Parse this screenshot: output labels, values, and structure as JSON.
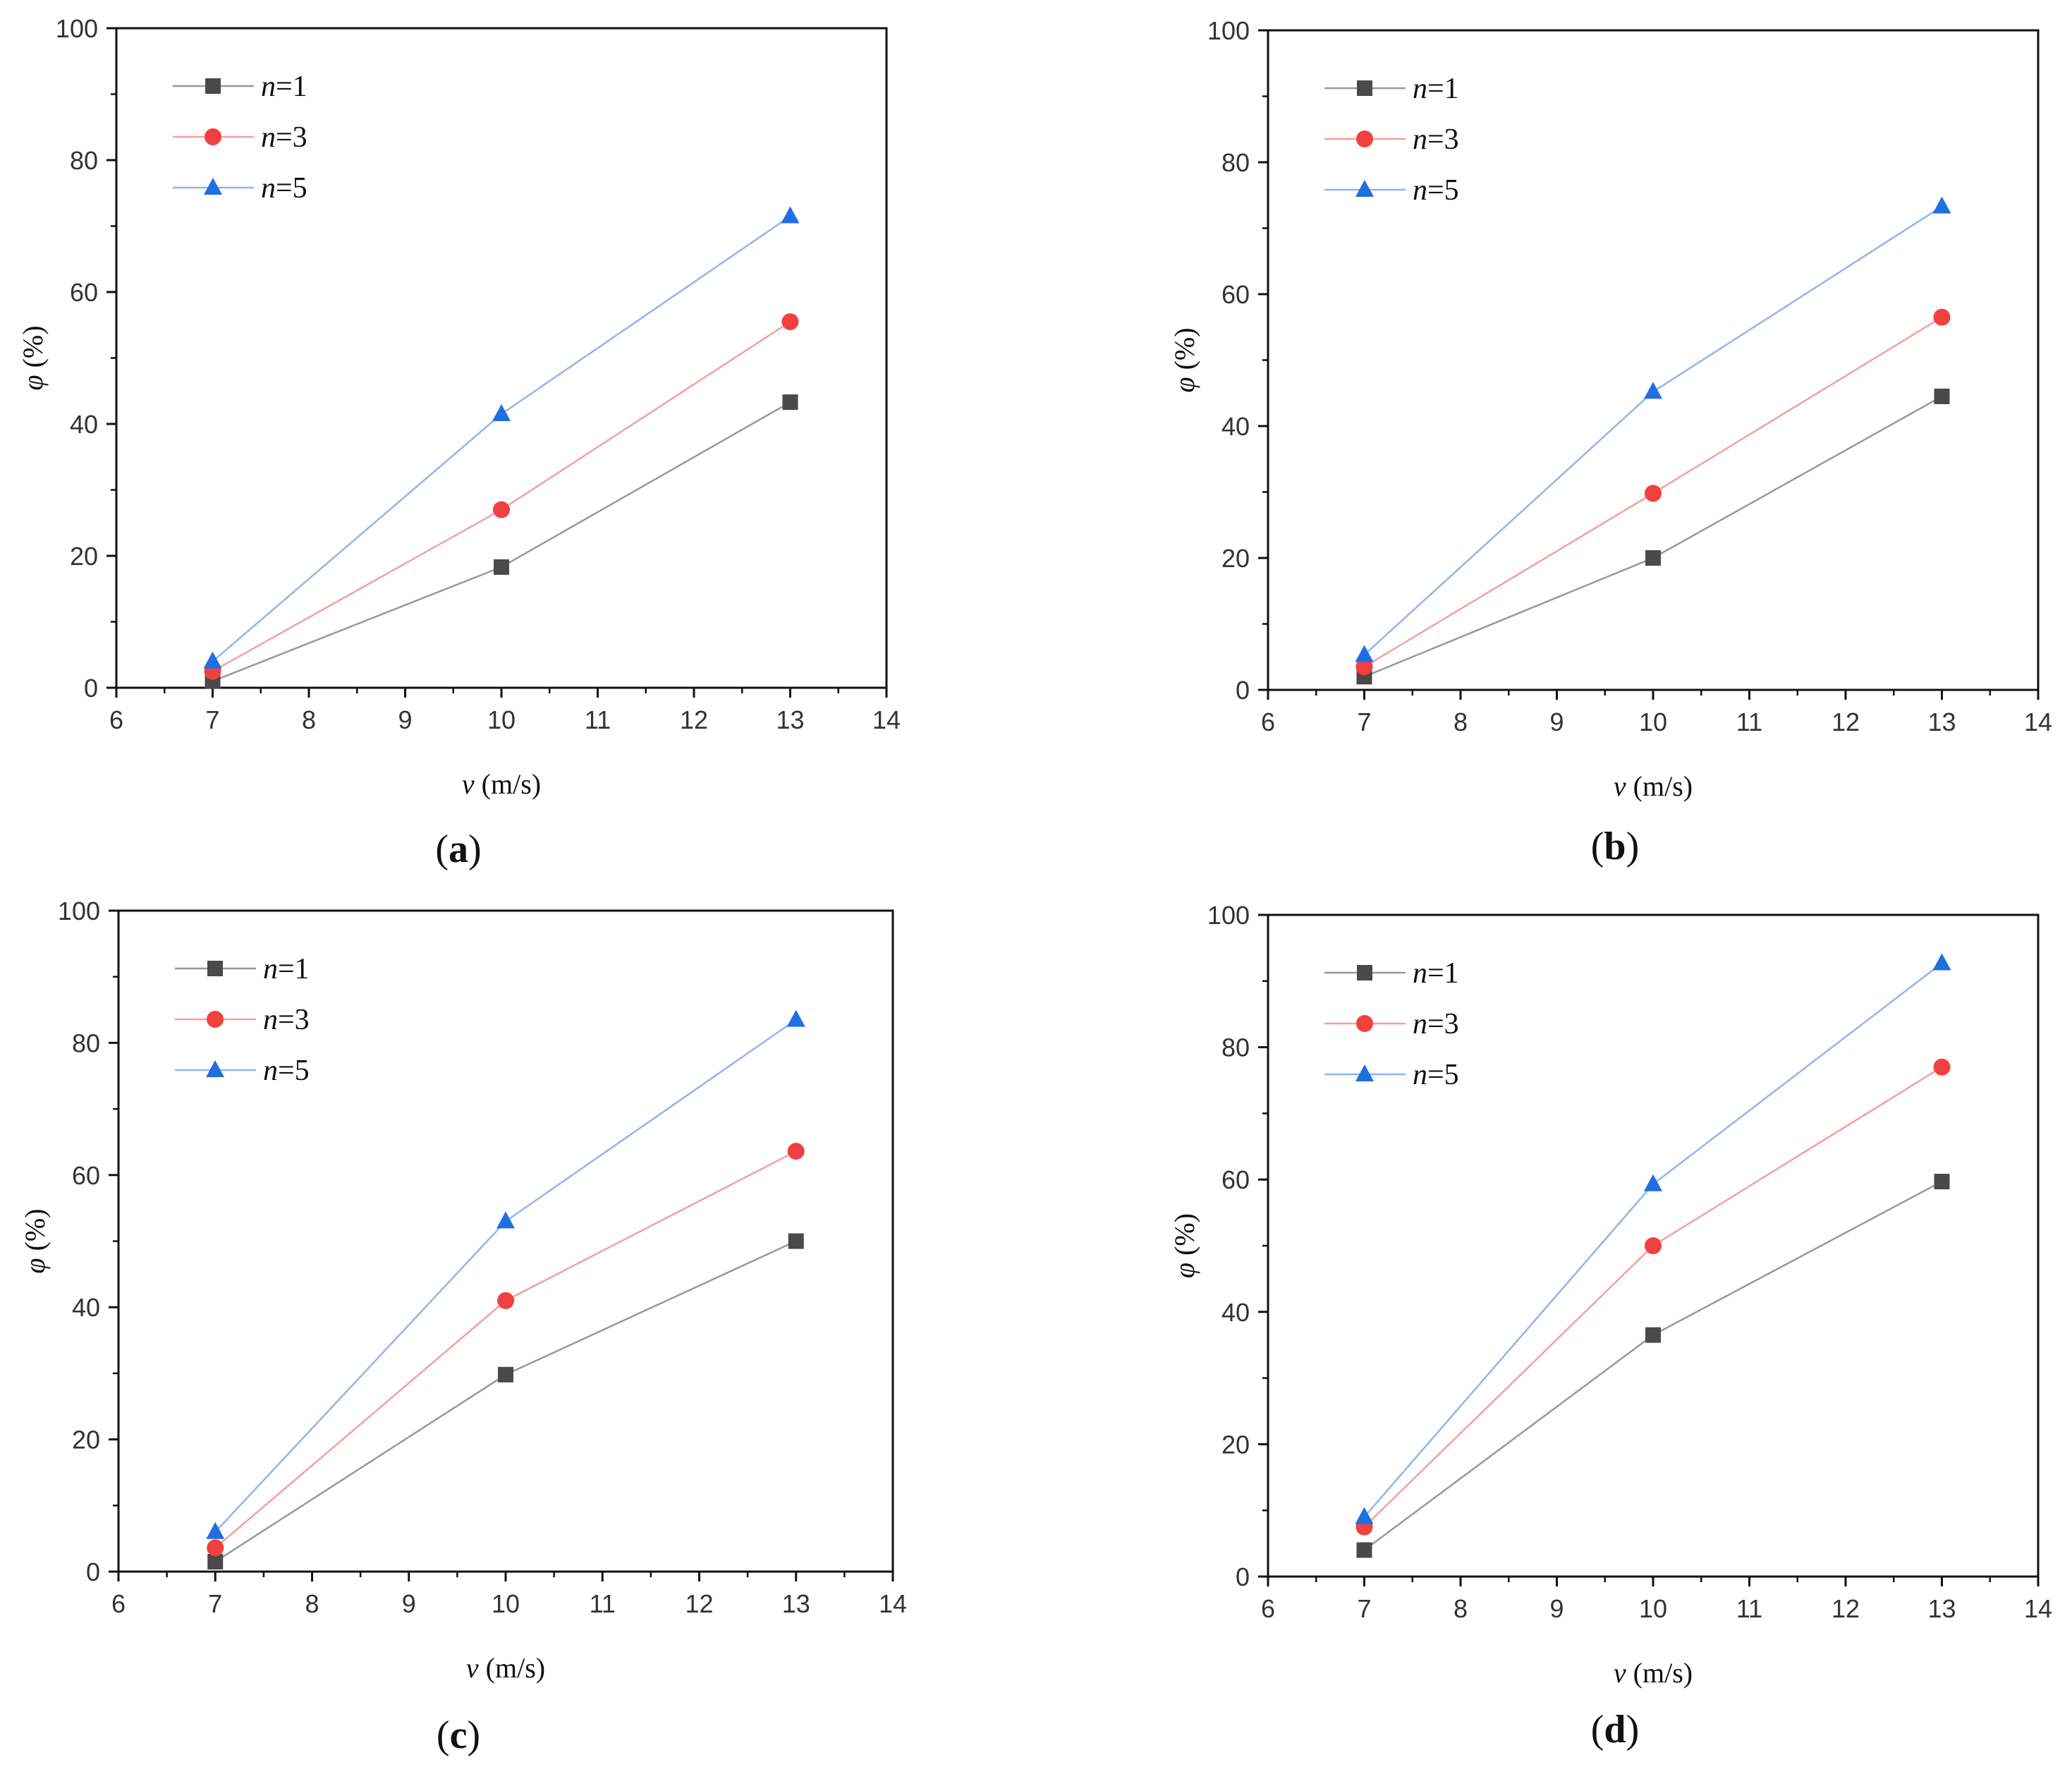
{
  "figure": {
    "series_colors": {
      "n=1": "#4a4a4a",
      "n=3": "#f0403f",
      "n=5": "#1f6fe0"
    },
    "line_colors": {
      "n=1": "#999999",
      "n=3": "#f4a09f",
      "n=5": "#8fb6ef"
    }
  },
  "chart_data": [
    {
      "type": "line",
      "panel_label": "a",
      "title": "",
      "xlabel_var": "v",
      "xlabel_unit": " (m/s)",
      "ylabel_var": "φ",
      "ylabel_unit": " (%)",
      "xlim": [
        6,
        14
      ],
      "ylim": [
        0,
        100
      ],
      "xticks": [
        6,
        7,
        8,
        9,
        10,
        11,
        12,
        13,
        14
      ],
      "yticks": [
        0,
        20,
        40,
        60,
        80,
        100
      ],
      "legend_position": "top-left",
      "x": [
        7,
        10,
        13
      ],
      "series": [
        {
          "name": "n=1",
          "var": "n",
          "eq": "=1",
          "marker": "square",
          "values": [
            1,
            18.3,
            43.3
          ]
        },
        {
          "name": "n=3",
          "var": "n",
          "eq": "=3",
          "marker": "circle",
          "values": [
            2.5,
            27,
            55.5
          ]
        },
        {
          "name": "n=5",
          "var": "n",
          "eq": "=5",
          "marker": "triangle",
          "values": [
            4,
            41.5,
            71.5
          ]
        }
      ]
    },
    {
      "type": "line",
      "panel_label": "b",
      "title": "",
      "xlabel_var": "v",
      "xlabel_unit": " (m/s)",
      "ylabel_var": "φ",
      "ylabel_unit": " (%)",
      "xlim": [
        6,
        14
      ],
      "ylim": [
        0,
        100
      ],
      "xticks": [
        6,
        7,
        8,
        9,
        10,
        11,
        12,
        13,
        14
      ],
      "yticks": [
        0,
        20,
        40,
        60,
        80,
        100
      ],
      "legend_position": "top-left",
      "x": [
        7,
        10,
        13
      ],
      "series": [
        {
          "name": "n=1",
          "var": "n",
          "eq": "=1",
          "marker": "square",
          "values": [
            2,
            20,
            44.5
          ]
        },
        {
          "name": "n=3",
          "var": "n",
          "eq": "=3",
          "marker": "circle",
          "values": [
            3.5,
            29.8,
            56.5
          ]
        },
        {
          "name": "n=5",
          "var": "n",
          "eq": "=5",
          "marker": "triangle",
          "values": [
            5.3,
            45.2,
            73.3
          ]
        }
      ]
    },
    {
      "type": "line",
      "panel_label": "c",
      "title": "",
      "xlabel_var": "v",
      "xlabel_unit": " (m/s)",
      "ylabel_var": "φ",
      "ylabel_unit": " (%)",
      "xlim": [
        6,
        14
      ],
      "ylim": [
        0,
        100
      ],
      "xticks": [
        6,
        7,
        8,
        9,
        10,
        11,
        12,
        13,
        14
      ],
      "yticks": [
        0,
        20,
        40,
        60,
        80,
        100
      ],
      "legend_position": "top-left",
      "x": [
        7,
        10,
        13
      ],
      "series": [
        {
          "name": "n=1",
          "var": "n",
          "eq": "=1",
          "marker": "square",
          "values": [
            1.5,
            29.8,
            50
          ]
        },
        {
          "name": "n=3",
          "var": "n",
          "eq": "=3",
          "marker": "circle",
          "values": [
            3.6,
            41,
            63.6
          ]
        },
        {
          "name": "n=5",
          "var": "n",
          "eq": "=5",
          "marker": "triangle",
          "values": [
            6,
            53,
            83.5
          ]
        }
      ]
    },
    {
      "type": "line",
      "panel_label": "d",
      "title": "",
      "xlabel_var": "v",
      "xlabel_unit": " (m/s)",
      "ylabel_var": "φ",
      "ylabel_unit": " (%)",
      "xlim": [
        6,
        14
      ],
      "ylim": [
        0,
        100
      ],
      "xticks": [
        6,
        7,
        8,
        9,
        10,
        11,
        12,
        13,
        14
      ],
      "yticks": [
        0,
        20,
        40,
        60,
        80,
        100
      ],
      "legend_position": "top-left",
      "x": [
        7,
        10,
        13
      ],
      "series": [
        {
          "name": "n=1",
          "var": "n",
          "eq": "=1",
          "marker": "square",
          "values": [
            4,
            36.5,
            59.7
          ]
        },
        {
          "name": "n=3",
          "var": "n",
          "eq": "=3",
          "marker": "circle",
          "values": [
            7.5,
            50,
            77
          ]
        },
        {
          "name": "n=5",
          "var": "n",
          "eq": "=5",
          "marker": "triangle",
          "values": [
            9,
            59.3,
            92.7
          ]
        }
      ]
    }
  ]
}
